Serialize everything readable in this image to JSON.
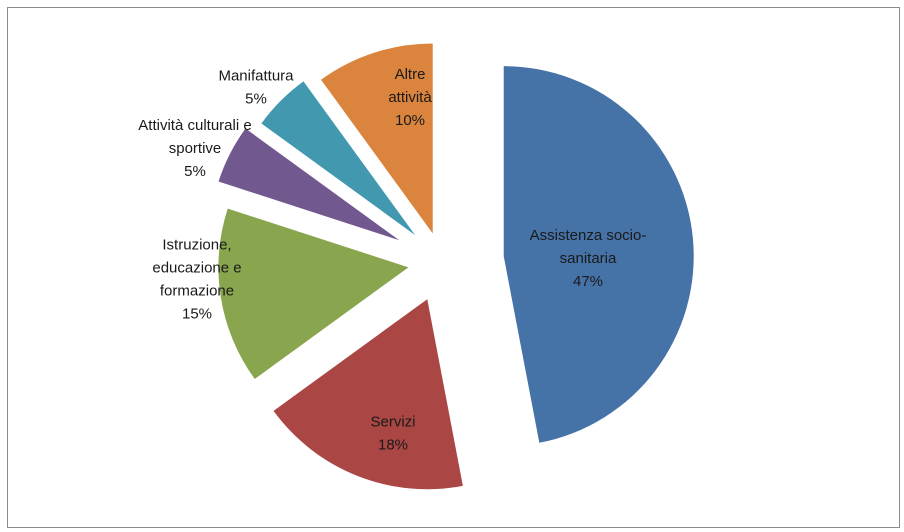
{
  "chart_data": {
    "type": "pie",
    "exploded": true,
    "legend": "none",
    "slices": [
      {
        "name_lines": [
          "Assistenza socio-",
          "sanitaria"
        ],
        "percent_label": "47%",
        "value": 47,
        "color": "#4572a7"
      },
      {
        "name_lines": [
          "Servizi"
        ],
        "percent_label": "18%",
        "value": 18,
        "color": "#aa4643"
      },
      {
        "name_lines": [
          "Istruzione,",
          "educazione e",
          "formazione"
        ],
        "percent_label": "15%",
        "value": 15,
        "color": "#89a54e"
      },
      {
        "name_lines": [
          "Attività culturali e",
          "sportive"
        ],
        "percent_label": "5%",
        "value": 5,
        "color": "#71588f"
      },
      {
        "name_lines": [
          "Manifattura"
        ],
        "percent_label": "5%",
        "value": 5,
        "color": "#4198af"
      },
      {
        "name_lines": [
          "Altre",
          "attività"
        ],
        "percent_label": "10%",
        "value": 10,
        "color": "#db843d"
      }
    ]
  }
}
